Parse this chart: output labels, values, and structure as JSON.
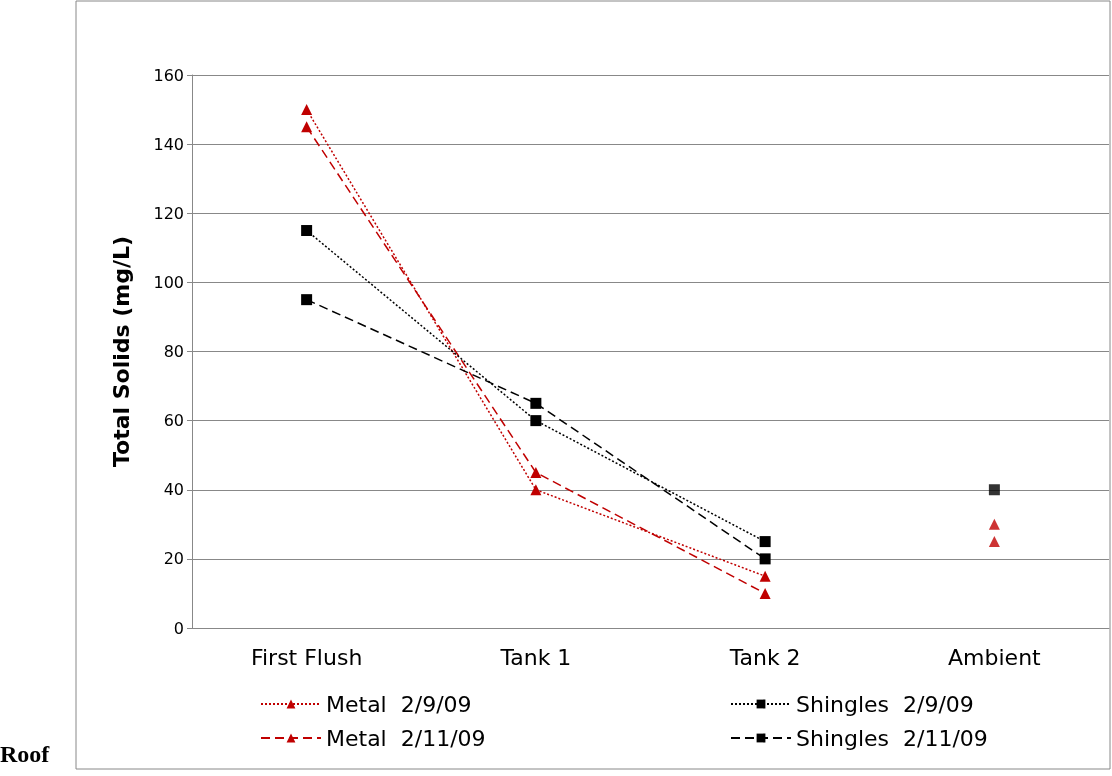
{
  "chart_data": {
    "type": "line",
    "categories": [
      "First Flush",
      "Tank 1",
      "Tank 2",
      "Ambient"
    ],
    "ylabel": "Total Solids (mg/L)",
    "ylim": [
      0,
      160
    ],
    "yticks": [
      0,
      20,
      40,
      60,
      80,
      100,
      120,
      140,
      160
    ],
    "grid": "y",
    "legend": "bottom",
    "annotations": [
      "Roof"
    ],
    "series": [
      {
        "name": "Metal  2/9/09",
        "color": "#c00000",
        "values": [
          150,
          40,
          15,
          null
        ],
        "line_style": "dotted",
        "marker": "triangle"
      },
      {
        "name": "Metal  2/11/09",
        "color": "#c00000",
        "values": [
          145,
          45,
          10,
          null
        ],
        "line_style": "dashed",
        "marker": "triangle"
      },
      {
        "name": "Shingles  2/9/09",
        "color": "#000000",
        "values": [
          115,
          60,
          25,
          null
        ],
        "line_style": "dotted",
        "marker": "square"
      },
      {
        "name": "Shingles  2/11/09",
        "color": "#000000",
        "values": [
          95,
          65,
          20,
          null
        ],
        "line_style": "dashed",
        "marker": "square"
      },
      {
        "type": "scatter",
        "x": [
          "Ambient"
        ],
        "color": "#c00000",
        "values": [
          30
        ],
        "marker": "triangle"
      },
      {
        "type": "scatter",
        "x": [
          "Ambient"
        ],
        "color": "#c00000",
        "values": [
          25
        ],
        "marker": "triangle"
      },
      {
        "type": "scatter",
        "x": [
          "Ambient"
        ],
        "color": "#000000",
        "values": [
          null
        ],
        "marker": "square"
      },
      {
        "type": "scatter",
        "x": [
          "Ambient"
        ],
        "color": "#000000",
        "values": [
          40
        ],
        "marker": "square"
      }
    ]
  }
}
